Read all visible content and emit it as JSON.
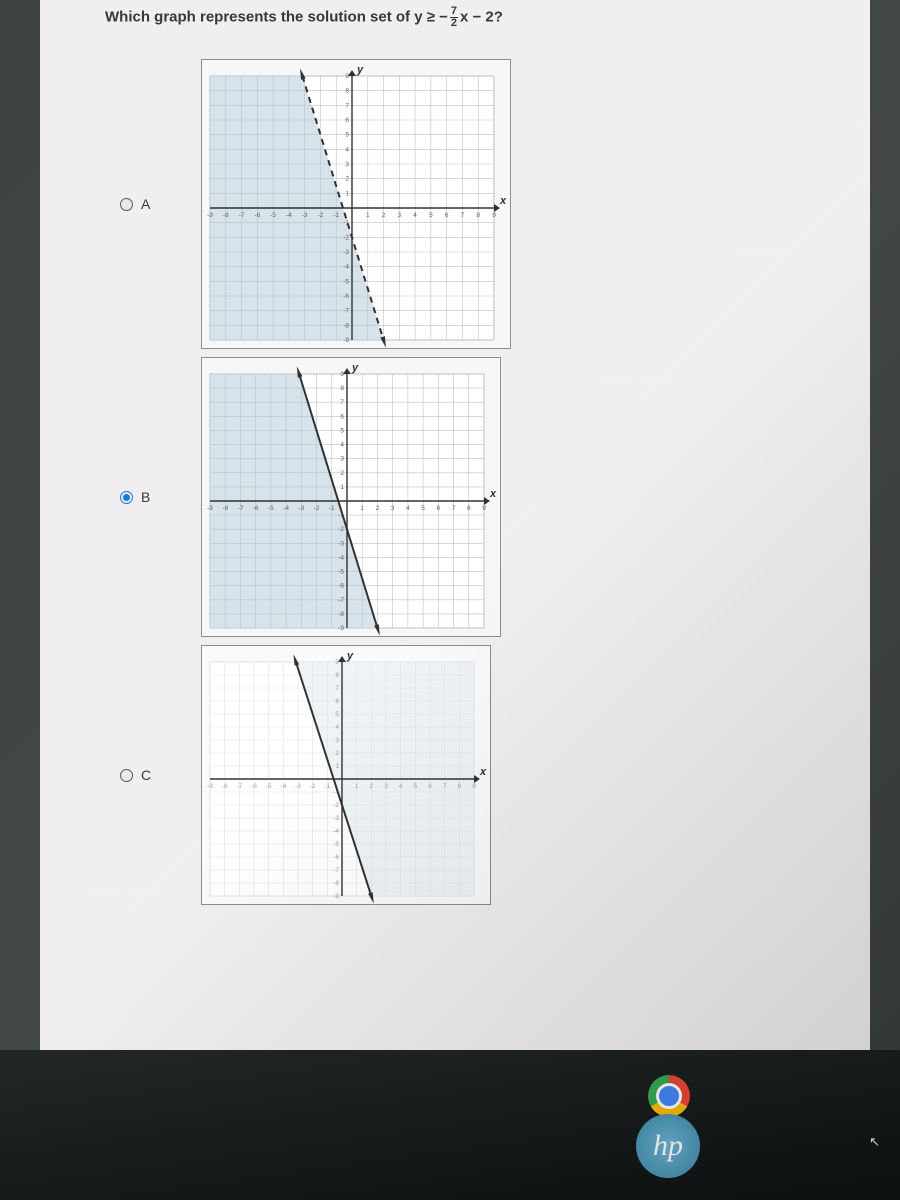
{
  "question": {
    "prefix": "Which graph represents the solution set of y ≥ −",
    "fraction_num": "7",
    "fraction_den": "2",
    "suffix": "x − 2?"
  },
  "options": [
    "A",
    "B",
    "C"
  ],
  "selected_option": 1,
  "axis_min": -9,
  "axis_max": 9,
  "line": {
    "slope": -3.5,
    "intercept": -2,
    "color": "#2a2a2a",
    "width": 2
  },
  "graphs": {
    "A": {
      "background": "#f7f7f8",
      "plot_bg": "#ffffff",
      "grid_color": "#b8c0c8",
      "axis_color": "#2a2a2a",
      "tick_color": "#5a5a5a",
      "shade_color": "#d6e2ea",
      "shade_side": "left",
      "line_style": "dashed",
      "y_ticks": [
        9,
        8,
        7,
        6,
        5,
        4,
        3,
        2,
        1,
        -1,
        -2,
        -3,
        -4,
        -5,
        -6,
        -7,
        -8,
        -9
      ],
      "x_ticks": [
        -9,
        -8,
        -7,
        -6,
        -5,
        -4,
        -3,
        -2,
        -1,
        1,
        2,
        3,
        4,
        5,
        6,
        7,
        8,
        9
      ],
      "y_label": "y",
      "x_label": "x"
    },
    "B": {
      "background": "#f7f7f8",
      "plot_bg": "#ffffff",
      "grid_color": "#b8c0c8",
      "axis_color": "#2a2a2a",
      "tick_color": "#5a5a5a",
      "shade_color": "#d6e2ea",
      "shade_side": "left",
      "line_style": "solid",
      "y_ticks": [
        9,
        8,
        7,
        6,
        5,
        4,
        3,
        2,
        1,
        -1,
        -2,
        -3,
        -4,
        -5,
        -6,
        -7,
        -8,
        -9
      ],
      "x_ticks": [
        -9,
        -8,
        -7,
        -6,
        -5,
        -4,
        -3,
        -2,
        -1,
        1,
        2,
        3,
        4,
        5,
        6,
        7,
        8,
        9
      ],
      "y_label": "y",
      "x_label": "x"
    },
    "C": {
      "background": "#fafafa",
      "plot_bg": "#ffffff",
      "grid_color": "#e0e2e4",
      "axis_color": "#2a2a2a",
      "tick_color": "#9a9a9a",
      "shade_color": "#eef3f6",
      "shade_side": "right",
      "line_style": "solid",
      "y_ticks": [
        9,
        8,
        7,
        6,
        5,
        4,
        3,
        2,
        1,
        -1,
        -2,
        -3,
        -4,
        -5,
        -6,
        -7,
        -8,
        -9
      ],
      "x_ticks": [
        -9,
        -8,
        -7,
        -6,
        -5,
        -4,
        -3,
        -2,
        -1,
        1,
        2,
        3,
        4,
        5,
        6,
        7,
        8,
        9
      ],
      "y_label": "y",
      "x_label": "x"
    }
  },
  "colors": {
    "page_bg": "#3a3f3f",
    "content_bg": "#f0eeef",
    "text": "#333333",
    "radio_selected": "#1976d2",
    "taskbar_bg": "#0e1212"
  },
  "taskbar": {
    "hp_logo_text": "hp"
  }
}
